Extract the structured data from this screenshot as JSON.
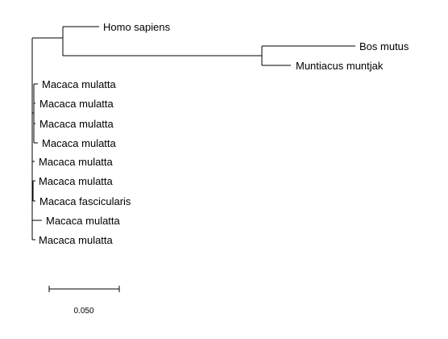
{
  "tree": {
    "taxa": [
      "Homo sapiens",
      "Bos mutus",
      "Muntiacus muntjak",
      "Macaca mulatta",
      "Macaca mulatta",
      "Macaca mulatta",
      "Macaca mulatta",
      "Macaca mulatta",
      "Macaca mulatta",
      "Macaca fascicularis",
      "Macaca mulatta",
      "Macaca mulatta"
    ],
    "scale_bar": {
      "label": "0.050",
      "length": 0.05
    },
    "line_color": "#000000"
  }
}
